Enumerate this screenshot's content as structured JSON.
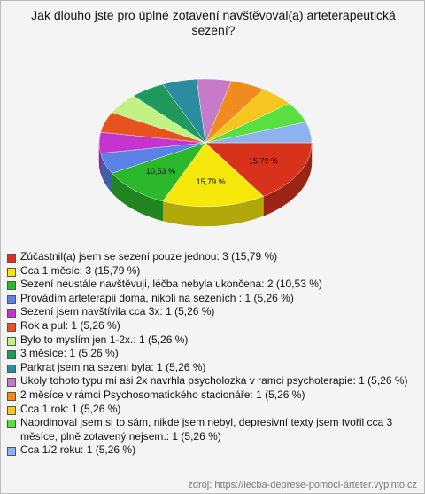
{
  "chart_data": {
    "type": "pie",
    "title": "Jak dlouho jste pro úplné zotavení navštěvoval(a) arteterapeutická sezení?",
    "categories": [
      "Zúčastnil(a) jsem se sezení pouze jednou: 3 (15,79 %)",
      "Cca 1 měsíc: 3 (15,79 %)",
      "Sezení neustále navštěvuji, léčba nebyla ukončena: 2 (10,53 %)",
      "Provádím arteterapii doma, nikoli na sezeních : 1 (5,26 %)",
      "Sezení jsem navštívila cca 3x: 1 (5,26 %)",
      "Rok a pul: 1 (5,26 %)",
      "Bylo to myslím jen 1-2x.: 1 (5,26 %)",
      "3 měsíce: 1 (5,26 %)",
      "Parkrat jsem na sezeni byla: 1 (5,26 %)",
      "Ukoly tohoto typu mi asi 2x navrhla psycholozka v ramci psychoterapie: 1 (5,26 %)",
      "2 měsíce v rámci Psychosomatického stacionáře: 1 (5,26 %)",
      "Cca 1 rok: 1 (5,26 %)",
      "Naordinoval jsem si to sám, nikde jsem nebyl, depresivní texty jsem tvořil cca 3 měsíce, plně zotavený nejsem.: 1 (5,26 %)",
      "Cca 1/2 roku: 1 (5,26 %)"
    ],
    "values": [
      15.79,
      15.79,
      10.53,
      5.26,
      5.26,
      5.26,
      5.26,
      5.26,
      5.26,
      5.26,
      5.26,
      5.26,
      5.26,
      5.26
    ],
    "value_labels": [
      "15,79 %",
      "15,79 %",
      "10,53 %",
      null,
      null,
      null,
      null,
      null,
      null,
      null,
      null,
      null,
      null,
      null
    ],
    "colors": [
      "#d8321c",
      "#f7e80c",
      "#2cb82c",
      "#5a82e6",
      "#c634d0",
      "#e8521e",
      "#c2f284",
      "#1f9a5c",
      "#2a8c9c",
      "#c67ac8",
      "#f08c1e",
      "#f5c61e",
      "#58e042",
      "#8cb2f0"
    ],
    "source": "zdroj: https://lecba-deprese-pomoci-arteter.vyplnto.cz"
  }
}
